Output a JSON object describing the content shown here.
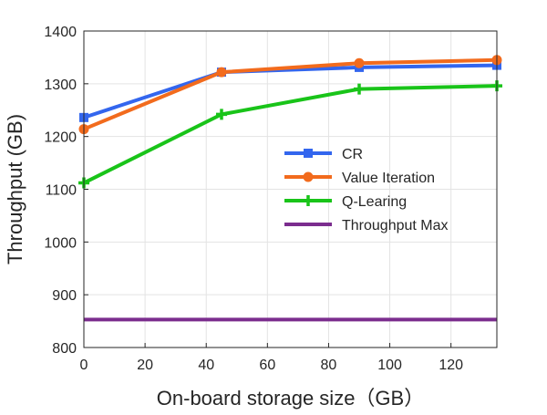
{
  "chart_data": {
    "type": "line",
    "title": "",
    "xlabel": "On-board storage size（GB）",
    "ylabel": "Throughput (GB)",
    "xlim": [
      0,
      135
    ],
    "ylim": [
      800,
      1400
    ],
    "xticks": [
      0,
      20,
      40,
      60,
      80,
      100,
      120
    ],
    "yticks": [
      800,
      900,
      1000,
      1100,
      1200,
      1300,
      1400
    ],
    "x": [
      0,
      45,
      90,
      135
    ],
    "grid": true,
    "legend_position": "center-right",
    "series": [
      {
        "name": "CR",
        "values": [
          1236,
          1322,
          1331,
          1335
        ],
        "color": "#3366ee",
        "marker": "square"
      },
      {
        "name": "Value Iteration",
        "values": [
          1214,
          1322,
          1339,
          1345
        ],
        "color": "#f26b1d",
        "marker": "circle"
      },
      {
        "name": "Q-Learing",
        "values": [
          1112,
          1242,
          1290,
          1296
        ],
        "color": "#19c419",
        "marker": "plus"
      },
      {
        "name": "Throughput Max",
        "values": [
          853,
          853,
          853,
          853
        ],
        "color": "#7b2d8e",
        "marker": "none"
      }
    ]
  }
}
